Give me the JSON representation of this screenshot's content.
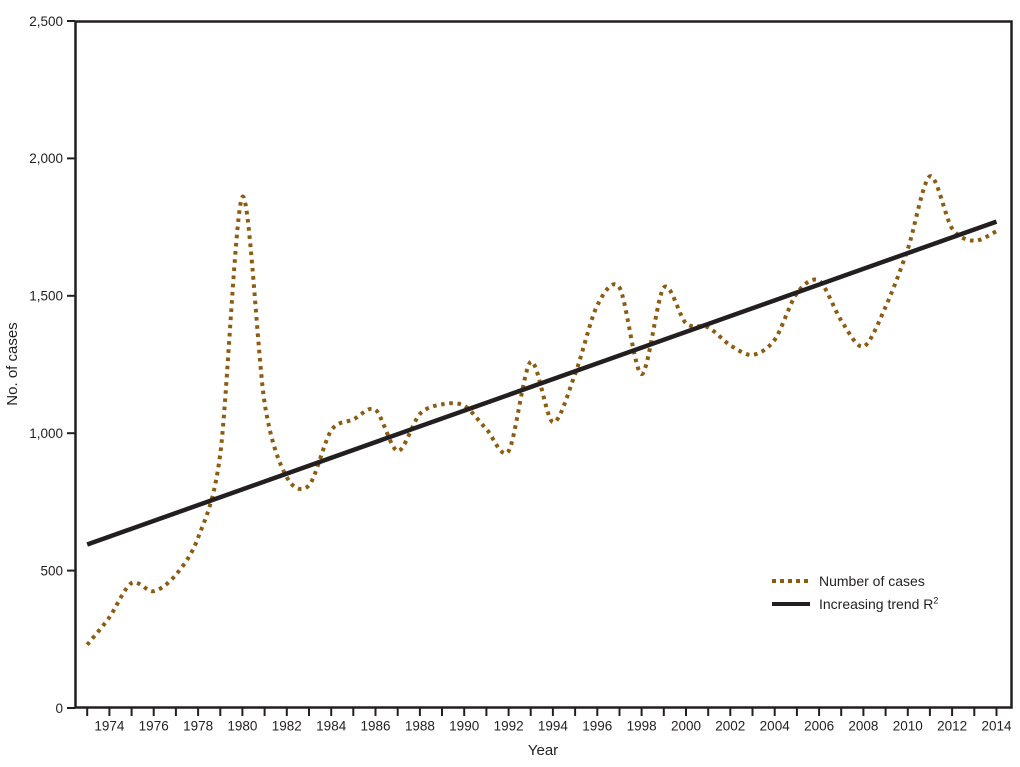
{
  "colors": {
    "background": "#ffffff",
    "text": "#231f20",
    "axis": "#231f20",
    "cases_line": "#8b5c12",
    "trend_line": "#231f20"
  },
  "chart_data": {
    "type": "line",
    "title": "",
    "xlabel": "Year",
    "ylabel": "No. of cases",
    "xlim": [
      1972.45,
      2014.7
    ],
    "ylim": [
      0,
      2500
    ],
    "grid": false,
    "frame": "box",
    "y_ticks": [
      0,
      500,
      1000,
      1500,
      2000,
      2500
    ],
    "y_tick_labels": [
      "0",
      "500",
      "1,000",
      "1,500",
      "2,000",
      "2,500"
    ],
    "x_ticks": [
      1973,
      1974,
      1975,
      1976,
      1977,
      1978,
      1979,
      1980,
      1981,
      1982,
      1983,
      1984,
      1985,
      1986,
      1987,
      1988,
      1989,
      1990,
      1991,
      1992,
      1993,
      1994,
      1995,
      1996,
      1997,
      1998,
      1999,
      2000,
      2001,
      2002,
      2003,
      2004,
      2005,
      2006,
      2007,
      2008,
      2009,
      2010,
      2011,
      2012,
      2013,
      2014
    ],
    "x_label_years": [
      1974,
      1976,
      1978,
      1980,
      1982,
      1984,
      1986,
      1988,
      1990,
      1992,
      1994,
      1996,
      1998,
      2000,
      2002,
      2004,
      2006,
      2008,
      2010,
      2012,
      2014
    ],
    "x_tick_labels": [
      "1974",
      "1976",
      "1978",
      "1980",
      "1982",
      "1984",
      "1986",
      "1988",
      "1990",
      "1992",
      "1994",
      "1996",
      "1998",
      "2000",
      "2002",
      "2004",
      "2006",
      "2008",
      "2010",
      "2012",
      "2014"
    ],
    "series": [
      {
        "name": "Number of cases",
        "style": "dotted",
        "smoothed": true,
        "color": "#8b5c12",
        "x": [
          1973,
          1974,
          1975,
          1976,
          1977,
          1978,
          1979,
          1980,
          1981,
          1982,
          1983,
          1984,
          1985,
          1986,
          1987,
          1988,
          1989,
          1990,
          1991,
          1992,
          1993,
          1994,
          1995,
          1996,
          1997,
          1998,
          1999,
          2000,
          2001,
          2002,
          2003,
          2004,
          2005,
          2006,
          2007,
          2008,
          2009,
          2010,
          2011,
          2012,
          2013,
          2014
        ],
        "values": [
          230,
          330,
          455,
          425,
          485,
          620,
          925,
          1860,
          1110,
          840,
          810,
          1010,
          1050,
          1085,
          935,
          1070,
          1105,
          1100,
          1015,
          935,
          1260,
          1040,
          1215,
          1465,
          1530,
          1215,
          1530,
          1400,
          1385,
          1320,
          1285,
          1340,
          1510,
          1555,
          1410,
          1315,
          1460,
          1670,
          1935,
          1745,
          1700,
          1735
        ]
      },
      {
        "name": "Increasing trend R²",
        "style": "solid",
        "smoothed": false,
        "color": "#231f20",
        "x": [
          1973,
          2014
        ],
        "values": [
          595,
          1770
        ]
      }
    ],
    "legend": {
      "position": "lower right",
      "items": [
        {
          "label": "Number of cases",
          "sup": "",
          "style": "dotted"
        },
        {
          "label": "Increasing trend R",
          "sup": "2",
          "style": "solid"
        }
      ]
    }
  }
}
